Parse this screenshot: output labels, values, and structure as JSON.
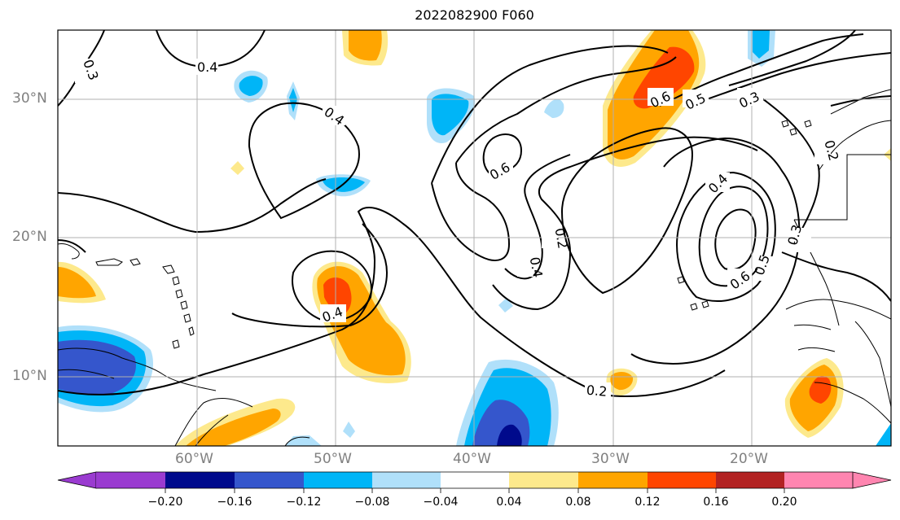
{
  "title": "2022082900 F060",
  "axes": {
    "lat_labels": [
      "30°N",
      "20°N",
      "10°N"
    ],
    "lon_labels": [
      "60°W",
      "50°W",
      "40°W",
      "30°W",
      "20°W"
    ]
  },
  "contour_labels": [
    "0.3",
    "0.4",
    "0.4",
    "0.6",
    "0.2",
    "0.4",
    "0.6",
    "0.5",
    "0.3",
    "0.4",
    "0.6",
    "0.5",
    "0.3",
    "0.2",
    "0.2",
    "0.4"
  ],
  "colorbar": {
    "ticks": [
      "−0.20",
      "−0.16",
      "−0.12",
      "−0.08",
      "−0.04",
      "0.04",
      "0.08",
      "0.12",
      "0.16",
      "0.20"
    ],
    "colors": [
      "#9a3bd0",
      "#000a8c",
      "#3556cc",
      "#00b5f7",
      "#b0e0fa",
      "#ffffff",
      "#fde98c",
      "#ffa500",
      "#ff4500",
      "#b22222",
      "#ff85b0"
    ]
  }
}
